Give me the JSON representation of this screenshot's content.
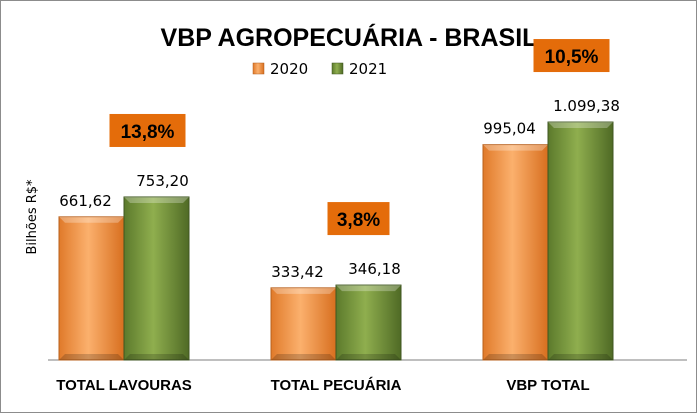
{
  "colors": {
    "series_2020": "#f79646",
    "series_2021": "#76923c",
    "badge": "#e46c0a",
    "axis": "#7f7f7f"
  },
  "chart_data": {
    "type": "bar",
    "title": "VBP AGROPECUÁRIA - BRASIL",
    "ylabel": "Bilhões R$*",
    "xlabel": "",
    "categories": [
      "TOTAL LAVOURAS",
      "TOTAL PECUÁRIA",
      "VBP TOTAL"
    ],
    "series": [
      {
        "name": "2020",
        "values": [
          661.62,
          333.42,
          995.04
        ],
        "labels": [
          "661,62",
          "333,42",
          "995,04"
        ]
      },
      {
        "name": "2021",
        "values": [
          753.2,
          346.18,
          1099.38
        ],
        "labels": [
          "753,20",
          "346,18",
          "1.099,38"
        ]
      }
    ],
    "growth_labels": [
      "13,8%",
      "3,8%",
      "10,5%"
    ],
    "legend": "top",
    "grid": false,
    "ylim": [
      0,
      1520
    ]
  }
}
